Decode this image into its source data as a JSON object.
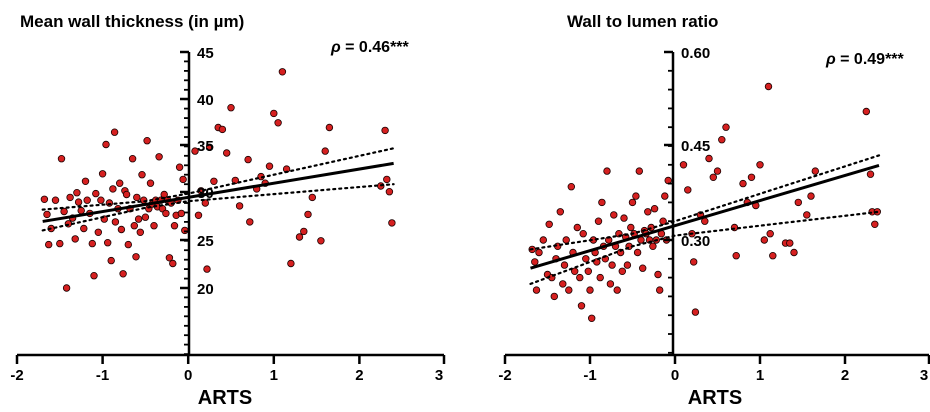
{
  "chart_data": [
    {
      "type": "scatter",
      "title": "Mean wall thickness (in µm)",
      "xlabel": "ARTS",
      "annotation": {
        "rho_symbol": "ρ",
        "text": " = 0.46***"
      },
      "xlim": [
        -2,
        3
      ],
      "ylim": [
        15,
        45
      ],
      "xticks": [
        "-2",
        "-1",
        "0",
        "1",
        "2",
        "3"
      ],
      "yticks": [
        "20",
        "25",
        "30",
        "35",
        "40",
        "45"
      ],
      "marker_color": "#d62020",
      "fit": {
        "slope": 1.5,
        "intercept": 29.6
      },
      "ci": {
        "lower": [
          [
            -1.7,
            26.1
          ],
          [
            -0.5,
            28.5
          ],
          [
            0,
            29.2
          ],
          [
            2.4,
            31.0
          ]
        ],
        "upper": [
          [
            -1.7,
            28.3
          ],
          [
            -0.5,
            29.2
          ],
          [
            0,
            30.0
          ],
          [
            2.4,
            34.8
          ]
        ]
      },
      "points": [
        [
          -1.68,
          29.4
        ],
        [
          -1.65,
          27.8
        ],
        [
          -1.63,
          24.6
        ],
        [
          -1.6,
          26.3
        ],
        [
          -1.55,
          29.3
        ],
        [
          -1.5,
          24.7
        ],
        [
          -1.48,
          33.7
        ],
        [
          -1.45,
          28.1
        ],
        [
          -1.42,
          20.0
        ],
        [
          -1.4,
          26.8
        ],
        [
          -1.38,
          29.6
        ],
        [
          -1.35,
          27.4
        ],
        [
          -1.32,
          25.2
        ],
        [
          -1.3,
          30.1
        ],
        [
          -1.28,
          29.1
        ],
        [
          -1.25,
          28.2
        ],
        [
          -1.22,
          26.3
        ],
        [
          -1.2,
          31.3
        ],
        [
          -1.18,
          29.3
        ],
        [
          -1.15,
          27.9
        ],
        [
          -1.12,
          24.7
        ],
        [
          -1.1,
          21.3
        ],
        [
          -1.08,
          30.0
        ],
        [
          -1.05,
          25.9
        ],
        [
          -1.02,
          29.3
        ],
        [
          -1.0,
          32.1
        ],
        [
          -0.98,
          27.3
        ],
        [
          -0.96,
          35.2
        ],
        [
          -0.94,
          24.8
        ],
        [
          -0.92,
          29.0
        ],
        [
          -0.9,
          22.9
        ],
        [
          -0.88,
          30.5
        ],
        [
          -0.86,
          36.5
        ],
        [
          -0.85,
          27.0
        ],
        [
          -0.82,
          28.4
        ],
        [
          -0.8,
          31.1
        ],
        [
          -0.78,
          26.2
        ],
        [
          -0.76,
          21.5
        ],
        [
          -0.74,
          30.3
        ],
        [
          -0.72,
          29.9
        ],
        [
          -0.7,
          24.6
        ],
        [
          -0.68,
          28.4
        ],
        [
          -0.65,
          33.7
        ],
        [
          -0.63,
          26.6
        ],
        [
          -0.61,
          23.3
        ],
        [
          -0.6,
          29.6
        ],
        [
          -0.58,
          27.3
        ],
        [
          -0.56,
          25.9
        ],
        [
          -0.54,
          32.0
        ],
        [
          -0.52,
          29.3
        ],
        [
          -0.5,
          27.5
        ],
        [
          -0.48,
          35.6
        ],
        [
          -0.46,
          28.4
        ],
        [
          -0.44,
          31.1
        ],
        [
          -0.42,
          28.9
        ],
        [
          -0.4,
          26.6
        ],
        [
          -0.38,
          29.3
        ],
        [
          -0.36,
          28.6
        ],
        [
          -0.34,
          33.9
        ],
        [
          -0.32,
          29.3
        ],
        [
          -0.3,
          28.4
        ],
        [
          -0.28,
          29.9
        ],
        [
          -0.26,
          27.9
        ],
        [
          -0.24,
          29.3
        ],
        [
          -0.22,
          23.2
        ],
        [
          -0.2,
          29.0
        ],
        [
          -0.18,
          22.6
        ],
        [
          -0.16,
          26.6
        ],
        [
          -0.14,
          27.7
        ],
        [
          -0.12,
          29.3
        ],
        [
          -0.1,
          32.8
        ],
        [
          -0.08,
          27.9
        ],
        [
          -0.06,
          31.5
        ],
        [
          -0.04,
          26.1
        ],
        [
          0.08,
          34.5
        ],
        [
          0.12,
          27.7
        ],
        [
          0.15,
          30.3
        ],
        [
          0.2,
          29.0
        ],
        [
          0.22,
          22.0
        ],
        [
          0.25,
          34.9
        ],
        [
          0.3,
          31.3
        ],
        [
          0.35,
          37.0
        ],
        [
          0.4,
          36.8
        ],
        [
          0.45,
          34.3
        ],
        [
          0.55,
          31.4
        ],
        [
          0.6,
          28.7
        ],
        [
          0.7,
          33.6
        ],
        [
          0.72,
          27.0
        ],
        [
          0.8,
          30.5
        ],
        [
          0.85,
          31.8
        ],
        [
          0.9,
          31.1
        ],
        [
          0.95,
          32.9
        ],
        [
          1.0,
          38.5
        ],
        [
          1.05,
          37.5
        ],
        [
          1.1,
          42.9
        ],
        [
          1.15,
          32.6
        ],
        [
          1.2,
          22.6
        ],
        [
          1.3,
          25.4
        ],
        [
          1.35,
          26.0
        ],
        [
          1.4,
          27.8
        ],
        [
          1.45,
          29.6
        ],
        [
          1.55,
          25.0
        ],
        [
          1.6,
          34.5
        ],
        [
          1.65,
          37.0
        ],
        [
          2.25,
          30.8
        ],
        [
          2.3,
          36.7
        ],
        [
          2.32,
          31.5
        ],
        [
          2.35,
          30.2
        ],
        [
          2.38,
          26.9
        ],
        [
          0.5,
          39.1
        ]
      ]
    },
    {
      "type": "scatter",
      "title": "Wall to lumen ratio",
      "xlabel": "ARTS",
      "annotation": {
        "rho_symbol": "ρ",
        "text": " = 0.49***"
      },
      "xlim": [
        -2,
        3
      ],
      "ylim": [
        0.15,
        0.6
      ],
      "xticks": [
        "-2",
        "-1",
        "0",
        "1",
        "2",
        "3"
      ],
      "yticks": [
        "0.30",
        "0.45",
        "0.60"
      ],
      "marker_color": "#d62020",
      "fit": {
        "slope": 0.04,
        "intercept": 0.323
      },
      "ci": {
        "lower": [
          [
            -1.7,
            0.23
          ],
          [
            -0.5,
            0.29
          ],
          [
            0,
            0.307
          ],
          [
            2.4,
            0.345
          ]
        ],
        "upper": [
          [
            -1.7,
            0.285
          ],
          [
            -0.5,
            0.31
          ],
          [
            0,
            0.33
          ],
          [
            2.4,
            0.435
          ]
        ]
      },
      "points": [
        [
          -1.68,
          0.285
        ],
        [
          -1.65,
          0.265
        ],
        [
          -1.63,
          0.22
        ],
        [
          -1.6,
          0.28
        ],
        [
          -1.55,
          0.3
        ],
        [
          -1.5,
          0.245
        ],
        [
          -1.48,
          0.325
        ],
        [
          -1.45,
          0.24
        ],
        [
          -1.42,
          0.21
        ],
        [
          -1.4,
          0.27
        ],
        [
          -1.38,
          0.29
        ],
        [
          -1.35,
          0.345
        ],
        [
          -1.32,
          0.23
        ],
        [
          -1.3,
          0.26
        ],
        [
          -1.28,
          0.3
        ],
        [
          -1.25,
          0.22
        ],
        [
          -1.22,
          0.385
        ],
        [
          -1.2,
          0.28
        ],
        [
          -1.18,
          0.25
        ],
        [
          -1.15,
          0.32
        ],
        [
          -1.12,
          0.24
        ],
        [
          -1.1,
          0.195
        ],
        [
          -1.08,
          0.31
        ],
        [
          -1.05,
          0.27
        ],
        [
          -1.02,
          0.25
        ],
        [
          -1.0,
          0.22
        ],
        [
          -0.98,
          0.175
        ],
        [
          -0.96,
          0.3
        ],
        [
          -0.94,
          0.28
        ],
        [
          -0.92,
          0.265
        ],
        [
          -0.9,
          0.33
        ],
        [
          -0.88,
          0.24
        ],
        [
          -0.86,
          0.36
        ],
        [
          -0.84,
          0.29
        ],
        [
          -0.82,
          0.27
        ],
        [
          -0.8,
          0.41
        ],
        [
          -0.78,
          0.3
        ],
        [
          -0.76,
          0.23
        ],
        [
          -0.74,
          0.26
        ],
        [
          -0.72,
          0.34
        ],
        [
          -0.7,
          0.29
        ],
        [
          -0.68,
          0.22
        ],
        [
          -0.66,
          0.31
        ],
        [
          -0.64,
          0.28
        ],
        [
          -0.62,
          0.25
        ],
        [
          -0.6,
          0.335
        ],
        [
          -0.58,
          0.305
        ],
        [
          -0.56,
          0.26
        ],
        [
          -0.54,
          0.29
        ],
        [
          -0.52,
          0.32
        ],
        [
          -0.5,
          0.36
        ],
        [
          -0.48,
          0.31
        ],
        [
          -0.46,
          0.37
        ],
        [
          -0.44,
          0.28
        ],
        [
          -0.42,
          0.41
        ],
        [
          -0.4,
          0.3
        ],
        [
          -0.38,
          0.255
        ],
        [
          -0.36,
          0.315
        ],
        [
          -0.34,
          0.31
        ],
        [
          -0.32,
          0.345
        ],
        [
          -0.3,
          0.3
        ],
        [
          -0.28,
          0.32
        ],
        [
          -0.26,
          0.29
        ],
        [
          -0.24,
          0.35
        ],
        [
          -0.22,
          0.3
        ],
        [
          -0.2,
          0.245
        ],
        [
          -0.18,
          0.22
        ],
        [
          -0.16,
          0.31
        ],
        [
          -0.14,
          0.33
        ],
        [
          -0.12,
          0.37
        ],
        [
          -0.1,
          0.3
        ],
        [
          -0.08,
          0.395
        ],
        [
          0.1,
          0.42
        ],
        [
          0.15,
          0.38
        ],
        [
          0.2,
          0.31
        ],
        [
          0.22,
          0.265
        ],
        [
          0.24,
          0.185
        ],
        [
          0.3,
          0.34
        ],
        [
          0.35,
          0.33
        ],
        [
          0.4,
          0.43
        ],
        [
          0.45,
          0.4
        ],
        [
          0.5,
          0.41
        ],
        [
          0.55,
          0.46
        ],
        [
          0.6,
          0.48
        ],
        [
          0.7,
          0.32
        ],
        [
          0.72,
          0.275
        ],
        [
          0.8,
          0.39
        ],
        [
          0.85,
          0.36
        ],
        [
          0.9,
          0.4
        ],
        [
          0.95,
          0.355
        ],
        [
          1.0,
          0.42
        ],
        [
          1.05,
          0.3
        ],
        [
          1.1,
          0.545
        ],
        [
          1.12,
          0.31
        ],
        [
          1.15,
          0.275
        ],
        [
          1.3,
          0.295
        ],
        [
          1.35,
          0.295
        ],
        [
          1.4,
          0.28
        ],
        [
          1.45,
          0.36
        ],
        [
          1.55,
          0.34
        ],
        [
          1.6,
          0.37
        ],
        [
          1.65,
          0.41
        ],
        [
          2.25,
          0.505
        ],
        [
          2.3,
          0.405
        ],
        [
          2.32,
          0.345
        ],
        [
          2.35,
          0.325
        ],
        [
          2.38,
          0.345
        ]
      ]
    }
  ]
}
